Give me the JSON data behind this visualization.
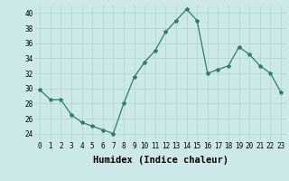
{
  "x": [
    0,
    1,
    2,
    3,
    4,
    5,
    6,
    7,
    8,
    9,
    10,
    11,
    12,
    13,
    14,
    15,
    16,
    17,
    18,
    19,
    20,
    21,
    22,
    23
  ],
  "y": [
    29.8,
    28.5,
    28.5,
    26.5,
    25.5,
    25.0,
    24.5,
    24.0,
    28.0,
    31.5,
    33.5,
    35.0,
    37.5,
    39.0,
    40.5,
    39.0,
    32.0,
    32.5,
    33.0,
    35.5,
    34.5,
    33.0,
    32.0,
    29.5
  ],
  "line_color": "#2e7d6e",
  "marker": "*",
  "marker_size": 3,
  "bg_color": "#cce8e8",
  "grid_color": "#aad4d4",
  "xlabel": "Humidex (Indice chaleur)",
  "xlim": [
    -0.5,
    23.5
  ],
  "ylim": [
    23,
    41
  ],
  "yticks": [
    24,
    26,
    28,
    30,
    32,
    34,
    36,
    38,
    40
  ],
  "xticks": [
    0,
    1,
    2,
    3,
    4,
    5,
    6,
    7,
    8,
    9,
    10,
    11,
    12,
    13,
    14,
    15,
    16,
    17,
    18,
    19,
    20,
    21,
    22,
    23
  ],
  "tick_fontsize": 5.5,
  "xlabel_fontsize": 7.5
}
